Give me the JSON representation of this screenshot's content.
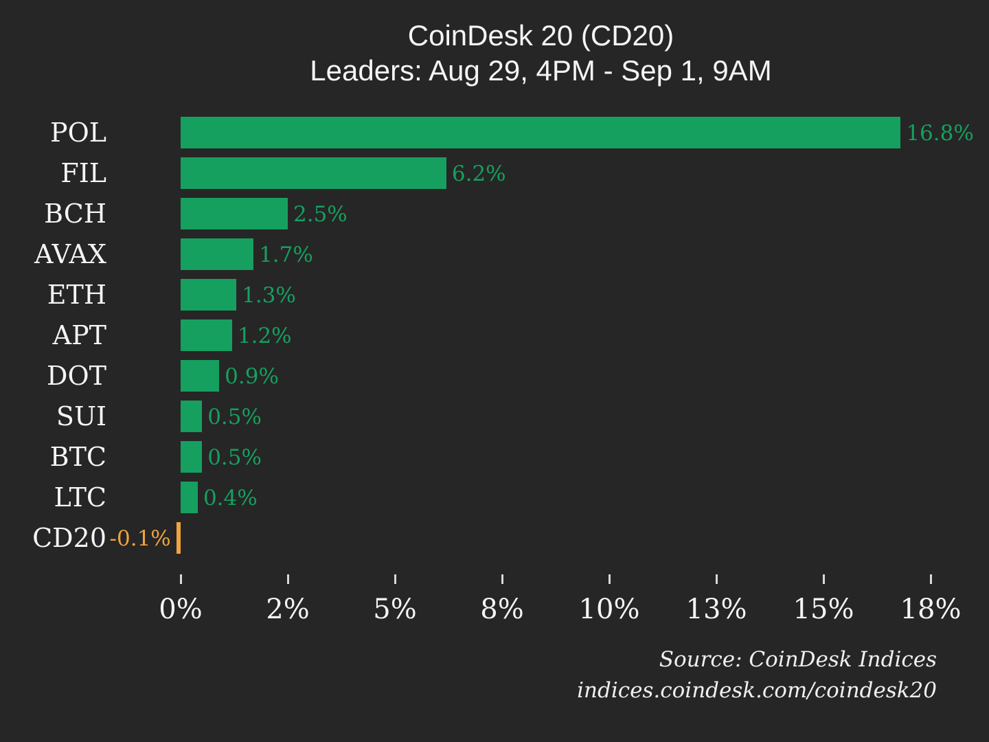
{
  "colors": {
    "background": "#262626",
    "text": "#f5f5f5",
    "tick": "#d9d9d9",
    "positive": "#16a05f",
    "negative": "#f0a43f"
  },
  "source": {
    "line1": "Source: CoinDesk Indices",
    "line2": "indices.coindesk.com/coindesk20"
  },
  "chart_data": {
    "type": "bar",
    "orientation": "horizontal",
    "title": "CoinDesk 20 (CD20)",
    "subtitle": "Leaders: Aug 29, 4PM - Sep 1, 9AM",
    "categories": [
      "POL",
      "FIL",
      "BCH",
      "AVAX",
      "ETH",
      "APT",
      "DOT",
      "SUI",
      "BTC",
      "LTC",
      "CD20"
    ],
    "values": [
      16.8,
      6.2,
      2.5,
      1.7,
      1.3,
      1.2,
      0.9,
      0.5,
      0.5,
      0.4,
      -0.1
    ],
    "value_labels": [
      "16.8%",
      "6.2%",
      "2.5%",
      "1.7%",
      "1.3%",
      "1.2%",
      "0.9%",
      "0.5%",
      "0.5%",
      "0.4%",
      "-0.1%"
    ],
    "xlabel": "",
    "ylabel": "",
    "xlim": [
      -1.6,
      18.4
    ],
    "x_ticks": {
      "values": [
        0,
        2.5,
        5,
        7.5,
        10,
        12.5,
        15,
        17.5
      ],
      "labels": [
        "0%",
        "2%",
        "5%",
        "8%",
        "10%",
        "13%",
        "15%",
        "18%"
      ]
    },
    "grid": false,
    "legend": null
  }
}
